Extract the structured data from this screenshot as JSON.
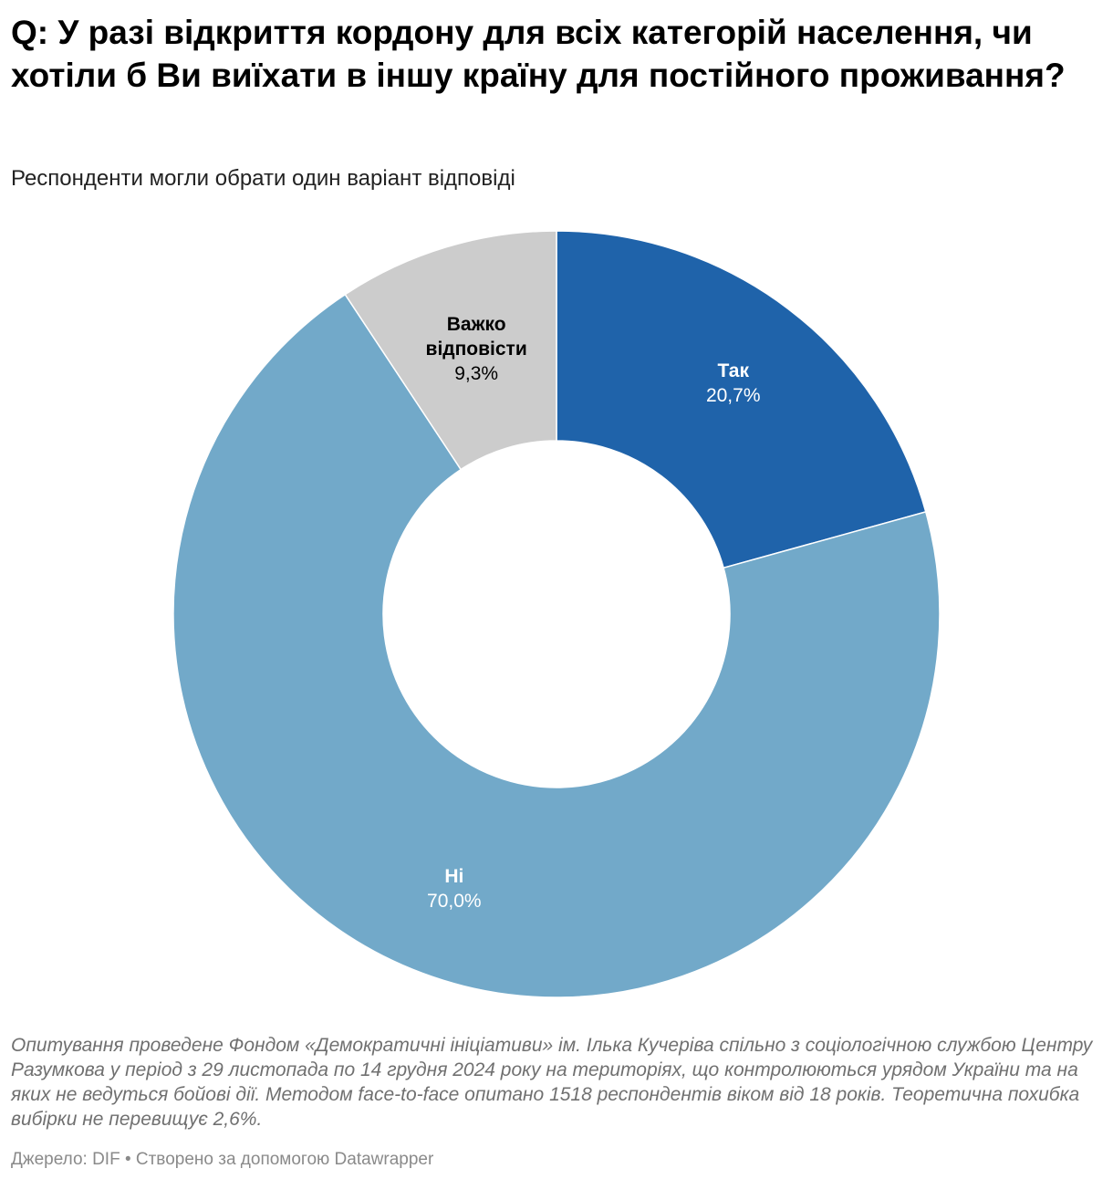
{
  "header": {
    "title": "Q: У разі відкриття кордону для всіх категорій населення, чи хотіли б Ви виїхати в іншу країну для постійного проживання?",
    "subtitle": "Респонденти могли обрати один варіант відповіді"
  },
  "footer": {
    "notes": "Опитування проведене Фондом «Демократичні ініціативи» ім. Ілька Кучеріва спільно з соціологічною службою Центру Разумкова у період з 29 листопада по 14 грудня 2024 року на територіях, що контролюються урядом України та на яких не ведуться бойові дії. Методом face-to-face опитано 1518 респондентів віком від 18 років. Теоретична похибка вибірки не перевищує 2,6%.",
    "source": "Джерело: DIF • Створено за допомогою Datawrapper"
  },
  "chart_data": {
    "type": "pie",
    "donut": true,
    "slices": [
      {
        "label": "Так",
        "value": 20.7,
        "display": "20,7%",
        "color": "#1f63aa",
        "label_color": "#ffffff"
      },
      {
        "label": "Ні",
        "value": 70.0,
        "display": "70,0%",
        "color": "#72a9c9",
        "label_color": "#ffffff"
      },
      {
        "label_lines": [
          "Важко",
          "відповісти"
        ],
        "value": 9.3,
        "display": "9,3%",
        "color": "#cccccc",
        "label_color": "#000000"
      }
    ]
  }
}
